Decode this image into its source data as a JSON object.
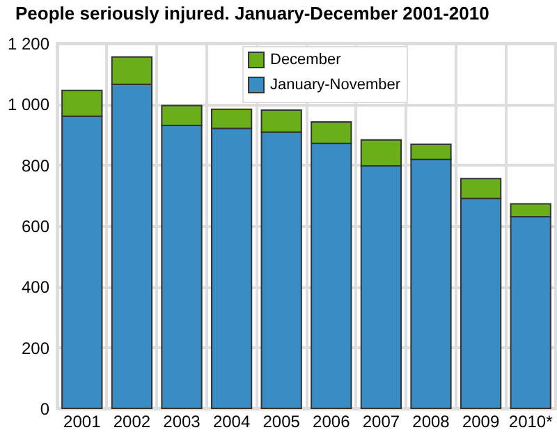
{
  "chart_data": {
    "type": "bar",
    "title": "People seriously injured. January-December 2001-2010",
    "categories": [
      "2001",
      "2002",
      "2003",
      "2004",
      "2005",
      "2006",
      "2007",
      "2008",
      "2009",
      "2010*"
    ],
    "series": [
      {
        "name": "January-November",
        "color": "#3a8dc4",
        "values": [
          960,
          1065,
          930,
          920,
          908,
          871,
          797,
          818,
          690,
          630
        ]
      },
      {
        "name": "December",
        "color": "#6aaf1a",
        "values": [
          85,
          90,
          65,
          63,
          72,
          70,
          85,
          50,
          65,
          42
        ]
      }
    ],
    "stacked": true,
    "ylim": [
      0,
      1200
    ],
    "yticks": [
      0,
      200,
      400,
      600,
      800,
      {
        "value": 1000,
        "label": "1 000"
      },
      {
        "value": 1200,
        "label": "1 200"
      }
    ],
    "grid": true,
    "legend": "top"
  }
}
